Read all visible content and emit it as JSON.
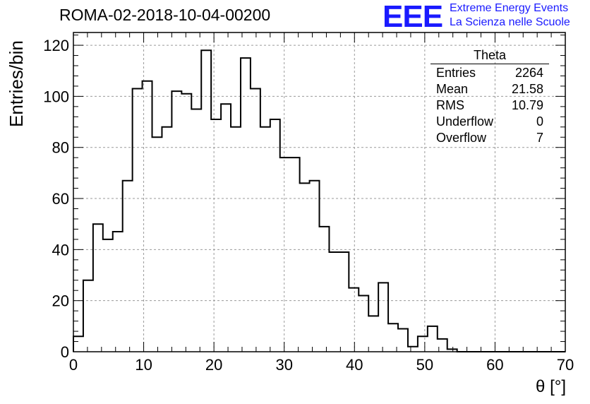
{
  "header": {
    "run_title": "ROMA-02-2018-10-04-00200",
    "logo_letters": "EEE",
    "logo_line1": "Extreme Energy Events",
    "logo_line2": "La Scienza nelle Scuole"
  },
  "stats": {
    "title": "Theta",
    "rows": [
      {
        "label": "Entries",
        "value": "2264"
      },
      {
        "label": "Mean",
        "value": "21.58"
      },
      {
        "label": "RMS",
        "value": "10.79"
      },
      {
        "label": "Underflow",
        "value": "0"
      },
      {
        "label": "Overflow",
        "value": "7"
      }
    ]
  },
  "chart_data": {
    "type": "histogram",
    "title": "ROMA-02-2018-10-04-00200",
    "xlabel": "θ [°]",
    "ylabel": "Entries/bin",
    "xlim": [
      0,
      70
    ],
    "ylim": [
      0,
      125
    ],
    "x_ticks": [
      0,
      10,
      20,
      30,
      40,
      50,
      60,
      70
    ],
    "y_ticks": [
      0,
      20,
      40,
      60,
      80,
      100,
      120
    ],
    "grid": true,
    "bin_width": 1.4,
    "bin_edges_start": 0,
    "counts": [
      6,
      28,
      50,
      44,
      47,
      67,
      103,
      106,
      84,
      88,
      102,
      101,
      95,
      118,
      91,
      97,
      88,
      115,
      103,
      88,
      91,
      76,
      76,
      66,
      67,
      49,
      39,
      39,
      25,
      22,
      14,
      27,
      11,
      9,
      2,
      6,
      10,
      5,
      1,
      0,
      0,
      0,
      0,
      0,
      0,
      0,
      0,
      0,
      0,
      0
    ]
  }
}
